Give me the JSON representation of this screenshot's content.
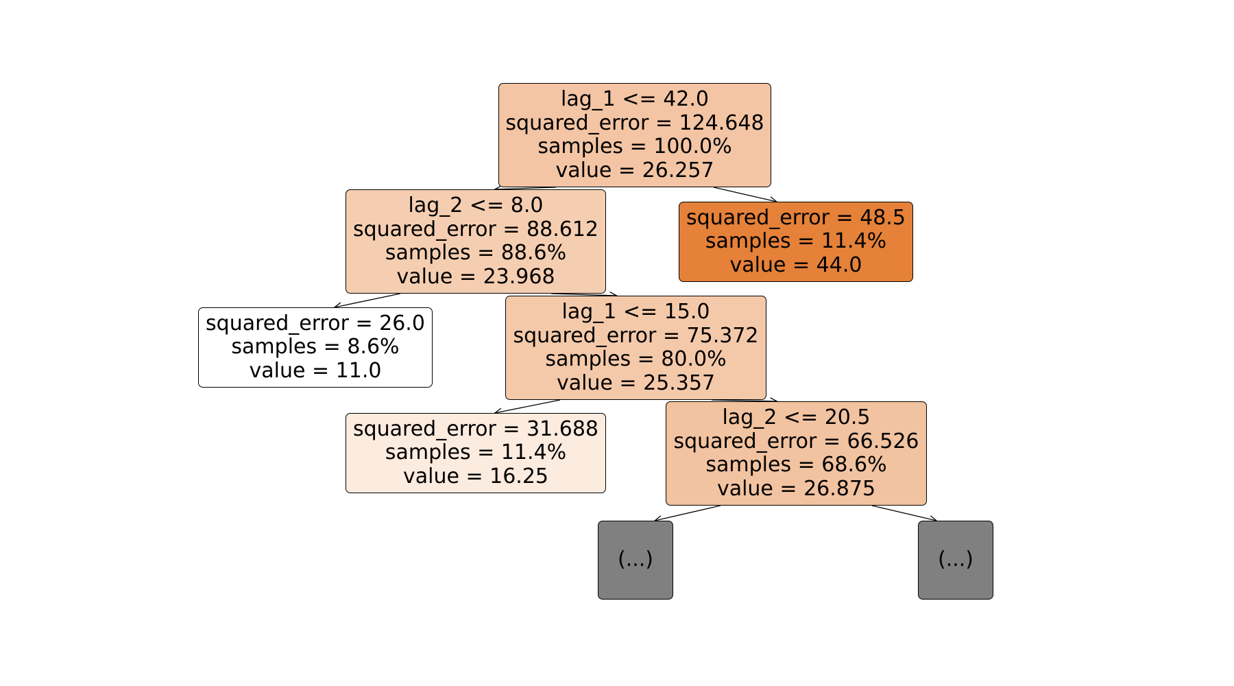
{
  "tree": {
    "nodes": {
      "n0": {
        "split": "lag_1 <= 42.0",
        "squared_error": "squared_error = 124.648",
        "samples": "samples = 100.0%",
        "value": "value = 26.257",
        "fill": "#f3c5a4"
      },
      "n1": {
        "split": "lag_2 <= 8.0",
        "squared_error": "squared_error = 88.612",
        "samples": "samples = 88.6%",
        "value": "value = 23.968",
        "fill": "#f5ceb1"
      },
      "n2": {
        "squared_error": "squared_error = 26.0",
        "samples": "samples = 8.6%",
        "value": "value = 11.0",
        "fill": "#ffffff"
      },
      "n3": {
        "split": "lag_1 <= 15.0",
        "squared_error": "squared_error = 75.372",
        "samples": "samples = 80.0%",
        "value": "value = 25.357",
        "fill": "#f4c9aa"
      },
      "n4": {
        "squared_error": "squared_error = 31.688",
        "samples": "samples = 11.4%",
        "value": "value = 16.25",
        "fill": "#fcebdf"
      },
      "n5": {
        "split": "lag_2 <= 20.5",
        "squared_error": "squared_error = 66.526",
        "samples": "samples = 68.6%",
        "value": "value = 26.875",
        "fill": "#f2c3a0"
      },
      "n6": {
        "label": "(...)",
        "fill": "#808080"
      },
      "n7": {
        "label": "(...)",
        "fill": "#808080"
      },
      "n8": {
        "squared_error": "squared_error = 48.5",
        "samples": "samples = 11.4%",
        "value": "value = 44.0",
        "fill": "#e58139"
      }
    },
    "edges": [
      [
        "n0",
        "n1"
      ],
      [
        "n0",
        "n8"
      ],
      [
        "n1",
        "n2"
      ],
      [
        "n1",
        "n3"
      ],
      [
        "n3",
        "n4"
      ],
      [
        "n3",
        "n5"
      ],
      [
        "n5",
        "n6"
      ],
      [
        "n5",
        "n7"
      ]
    ]
  }
}
